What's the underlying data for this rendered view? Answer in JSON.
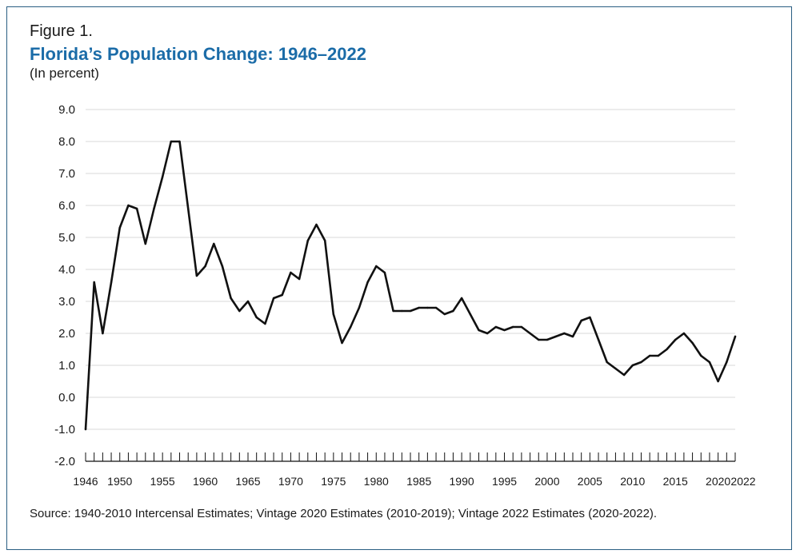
{
  "figure": {
    "label": "Figure 1.",
    "title": "Florida’s Population Change: 1946–2022",
    "subtitle": "(In percent)",
    "source": "Source: 1940-2010 Intercensal Estimates; Vintage 2020 Estimates (2010-2019); Vintage 2022 Estimates (2020-2022)."
  },
  "colors": {
    "frame": "#2a5e82",
    "title": "#1b6ca8",
    "line": "#111111",
    "grid": "#d9d9d9"
  },
  "chart_data": {
    "type": "line",
    "title": "Florida’s Population Change: 1946–2022",
    "subtitle": "(In percent)",
    "xlabel": "",
    "ylabel": "",
    "xlim": [
      1946,
      2022
    ],
    "ylim": [
      -2.0,
      9.0
    ],
    "grid": true,
    "y_ticks": [
      "9.0",
      "8.0",
      "7.0",
      "6.0",
      "5.0",
      "4.0",
      "3.0",
      "2.0",
      "1.0",
      "0.0",
      "-1.0",
      "-2.0"
    ],
    "x_tick_labels": [
      "1946",
      "1950",
      "1955",
      "1960",
      "1965",
      "1970",
      "1975",
      "1980",
      "1985",
      "1990",
      "1995",
      "2000",
      "2005",
      "2010",
      "2015",
      "2020",
      "2022"
    ],
    "x": [
      1946,
      1947,
      1948,
      1949,
      1950,
      1951,
      1952,
      1953,
      1954,
      1955,
      1956,
      1957,
      1958,
      1959,
      1960,
      1961,
      1962,
      1963,
      1964,
      1965,
      1966,
      1967,
      1968,
      1969,
      1970,
      1971,
      1972,
      1973,
      1974,
      1975,
      1976,
      1977,
      1978,
      1979,
      1980,
      1981,
      1982,
      1983,
      1984,
      1985,
      1986,
      1987,
      1988,
      1989,
      1990,
      1991,
      1992,
      1993,
      1994,
      1995,
      1996,
      1997,
      1998,
      1999,
      2000,
      2001,
      2002,
      2003,
      2004,
      2005,
      2006,
      2007,
      2008,
      2009,
      2010,
      2011,
      2012,
      2013,
      2014,
      2015,
      2016,
      2017,
      2018,
      2019,
      2020,
      2021,
      2022
    ],
    "series": [
      {
        "values": [
          -1.0,
          3.6,
          2.0,
          3.6,
          5.3,
          6.0,
          5.9,
          4.8,
          5.9,
          6.9,
          8.0,
          8.0,
          5.9,
          3.8,
          4.1,
          4.8,
          4.1,
          3.1,
          2.7,
          3.0,
          2.5,
          2.3,
          3.1,
          3.2,
          3.9,
          3.7,
          4.9,
          5.4,
          4.9,
          2.6,
          1.7,
          2.2,
          2.8,
          3.6,
          4.1,
          3.9,
          2.7,
          2.7,
          2.7,
          2.8,
          2.8,
          2.8,
          2.6,
          2.7,
          3.1,
          2.6,
          2.1,
          2.0,
          2.2,
          2.1,
          2.2,
          2.2,
          2.0,
          1.8,
          1.8,
          1.9,
          2.0,
          1.9,
          2.4,
          2.5,
          1.8,
          1.1,
          0.9,
          0.7,
          1.0,
          1.1,
          1.3,
          1.3,
          1.5,
          1.8,
          2.0,
          1.7,
          1.3,
          1.1,
          0.5,
          1.1,
          1.9
        ]
      }
    ]
  }
}
